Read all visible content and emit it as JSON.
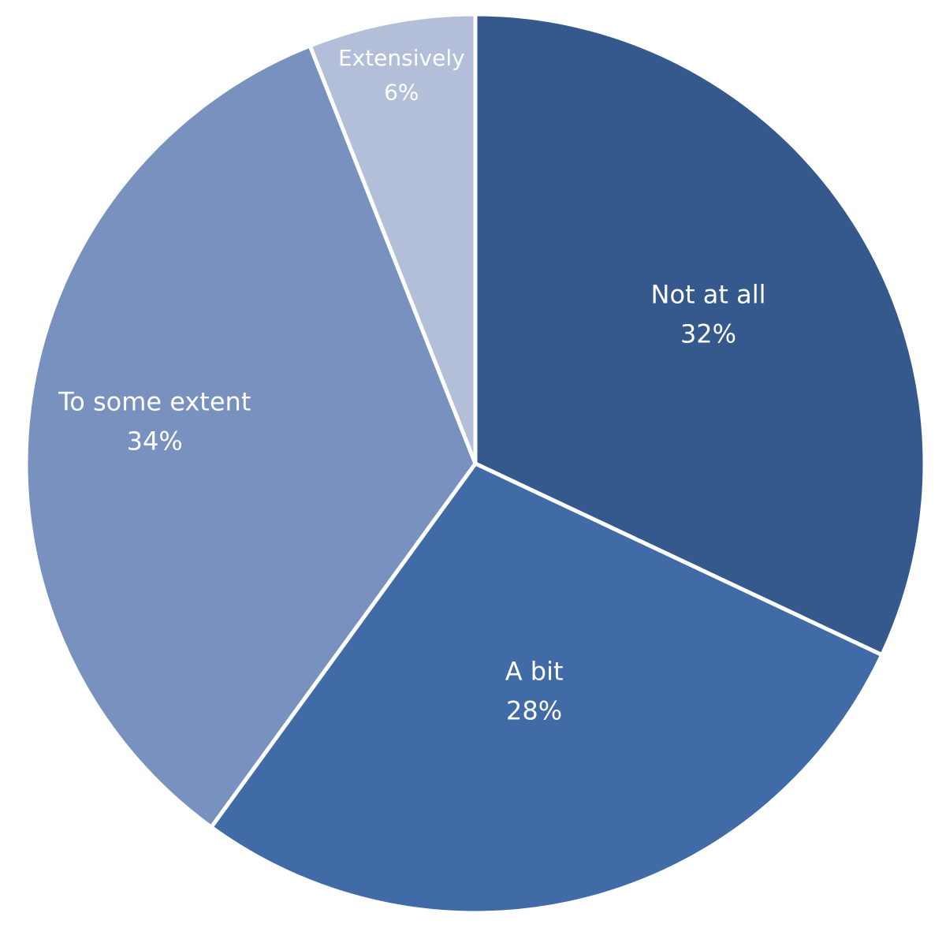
{
  "chart_data": {
    "type": "pie",
    "categories": [
      "Not at all",
      "A bit",
      "To some extent",
      "Extensively"
    ],
    "values": [
      32,
      28,
      34,
      6
    ],
    "value_labels": [
      "32%",
      "28%",
      "34%",
      "6%"
    ],
    "colors": [
      "#35598c",
      "#406ba7",
      "#7891bf",
      "#b3bfd8"
    ]
  }
}
